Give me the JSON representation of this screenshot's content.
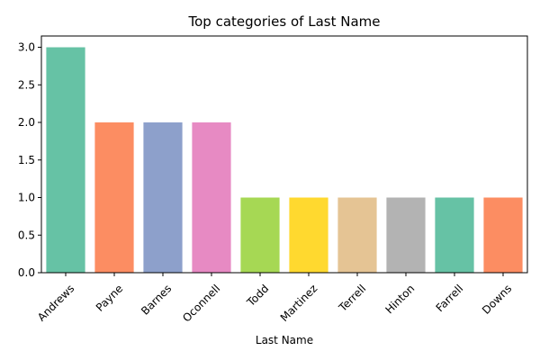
{
  "chart_data": {
    "type": "bar",
    "title": "Top categories of Last Name",
    "xlabel": "Last Name",
    "ylabel": "",
    "categories": [
      "Andrews",
      "Payne",
      "Barnes",
      "Oconnell",
      "Todd",
      "Martinez",
      "Terrell",
      "Hinton",
      "Farrell",
      "Downs"
    ],
    "values": [
      3,
      2,
      2,
      2,
      1,
      1,
      1,
      1,
      1,
      1
    ],
    "ylim": [
      0,
      3.15
    ],
    "yticks": [
      "0.0",
      "0.5",
      "1.0",
      "1.5",
      "2.0",
      "2.5",
      "3.0"
    ],
    "colors": [
      "#66c2a5",
      "#fc8d62",
      "#8da0cb",
      "#e78ac3",
      "#a6d854",
      "#ffd92f",
      "#e5c494",
      "#b3b3b3",
      "#66c2a5",
      "#fc8d62"
    ],
    "grid": false,
    "legend": "none"
  }
}
